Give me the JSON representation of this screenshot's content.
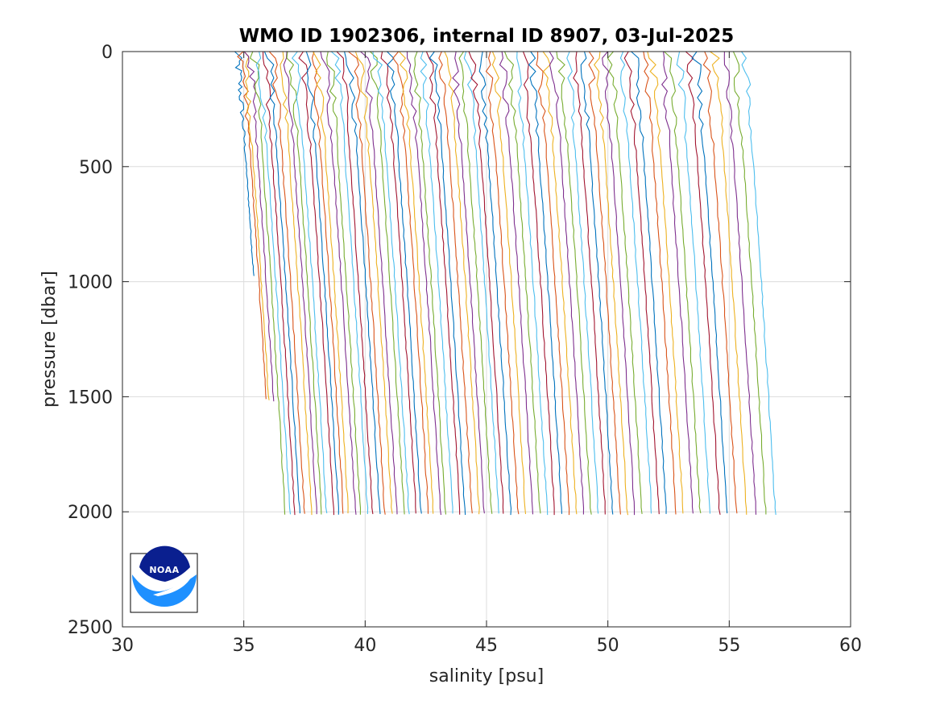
{
  "chart_data": {
    "type": "line",
    "title": "WMO ID 1902306, internal ID 8907, 03-Jul-2025",
    "xlabel": "salinity [psu]",
    "ylabel": "pressure [dbar]",
    "xlim": [
      30,
      60
    ],
    "ylim": [
      0,
      2500
    ],
    "y_reversed": true,
    "xticks": [
      30,
      35,
      40,
      45,
      50,
      55,
      60
    ],
    "yticks": [
      0,
      500,
      1000,
      1500,
      2000,
      2500
    ],
    "grid": true,
    "description_of_series": "Vertical salinity profiles, each offset successively along salinity axis",
    "series_count": 76,
    "profile_start_offsets": [
      34.7,
      34.9,
      35.0,
      35.2,
      35.4,
      35.6,
      35.8,
      36.0,
      36.2,
      36.5,
      36.7,
      36.9,
      37.1,
      37.4,
      37.6,
      37.8,
      38.0,
      38.3,
      38.5,
      38.8,
      39.0,
      39.3,
      39.5,
      39.8,
      40.0,
      40.3,
      40.5,
      40.8,
      41.0,
      41.3,
      41.5,
      41.8,
      42.0,
      42.3,
      42.6,
      42.8,
      43.1,
      43.4,
      43.6,
      43.9,
      44.2,
      44.4,
      44.7,
      45.0,
      45.3,
      45.6,
      45.9,
      46.2,
      46.5,
      46.8,
      47.1,
      47.4,
      47.7,
      48.0,
      48.3,
      48.6,
      48.9,
      49.2,
      49.5,
      49.8,
      50.1,
      50.5,
      50.8,
      51.1,
      51.5,
      51.8,
      52.2,
      52.5,
      52.9,
      53.3,
      53.6,
      54.0,
      54.4,
      54.8,
      55.2,
      55.6
    ],
    "max_pressure_typical": 2010,
    "colors": [
      "#0072bd",
      "#d95319",
      "#edb120",
      "#7e2f8e",
      "#77ac30",
      "#4dbeee",
      "#a2142f"
    ]
  },
  "logo": {
    "name": "noaa-logo",
    "text": "NOAA",
    "colors": {
      "dark": "#0a1f8f",
      "light": "#1e90ff",
      "white": "#ffffff"
    }
  }
}
